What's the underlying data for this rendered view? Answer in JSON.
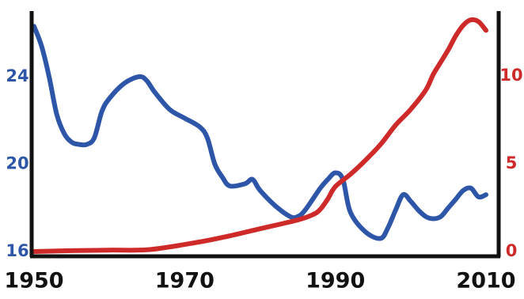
{
  "chart_data": {
    "type": "line",
    "title": "",
    "xlabel": "",
    "ylabel": "",
    "legend": "none",
    "grid": false,
    "x_ticks": [
      "1950",
      "1970",
      "1990",
      "2010"
    ],
    "xlim": [
      1950,
      2010
    ],
    "y_left": {
      "ylim": [
        16,
        27
      ],
      "ticks": [
        "16",
        "20",
        "24"
      ],
      "color": "#2e56a8"
    },
    "y_right": {
      "ylim": [
        0,
        13.7
      ],
      "ticks": [
        "0",
        "5",
        "10"
      ],
      "color": "#cf2a2a"
    },
    "series": [
      {
        "axis": "left",
        "color": "#2e56a8",
        "x": [
          1950,
          1951,
          1952,
          1953,
          1954,
          1955,
          1956,
          1957,
          1958,
          1959,
          1960,
          1962,
          1964,
          1965,
          1966,
          1968,
          1970,
          1972,
          1973,
          1974,
          1975,
          1976,
          1978,
          1979,
          1980,
          1982,
          1984,
          1985,
          1986,
          1988,
          1989,
          1990,
          1991,
          1992,
          1994,
          1996,
          1997,
          1998,
          1999,
          2000,
          2001,
          2002,
          2003,
          2004,
          2005,
          2006,
          2007,
          2008,
          2009,
          2010
        ],
        "values": [
          26.3,
          25.4,
          24.0,
          22.3,
          21.4,
          21.0,
          20.9,
          20.9,
          21.2,
          22.4,
          23.0,
          23.7,
          24.0,
          23.8,
          23.3,
          22.5,
          22.1,
          21.7,
          21.2,
          20.0,
          19.4,
          19.0,
          19.1,
          19.3,
          18.8,
          18.1,
          17.6,
          17.6,
          17.9,
          18.9,
          19.3,
          19.6,
          19.3,
          17.8,
          16.9,
          16.6,
          17.1,
          17.9,
          18.6,
          18.3,
          17.9,
          17.6,
          17.5,
          17.6,
          18.0,
          18.4,
          18.8,
          18.9,
          18.5,
          18.6
        ]
      },
      {
        "axis": "right",
        "color": "#cf2a2a",
        "x": [
          1950,
          1955,
          1960,
          1965,
          1970,
          1975,
          1980,
          1985,
          1987,
          1988,
          1989,
          1990,
          1992,
          1994,
          1996,
          1998,
          2000,
          2002,
          2003,
          2004,
          2005,
          2006,
          2007,
          2008,
          2009,
          2010
        ],
        "values": [
          0.0,
          0.05,
          0.08,
          0.1,
          0.4,
          0.8,
          1.3,
          1.8,
          2.1,
          2.4,
          3.0,
          3.7,
          4.4,
          5.2,
          6.1,
          7.2,
          8.1,
          9.2,
          10.1,
          10.8,
          11.5,
          12.3,
          12.9,
          13.2,
          13.1,
          12.6
        ]
      }
    ]
  }
}
